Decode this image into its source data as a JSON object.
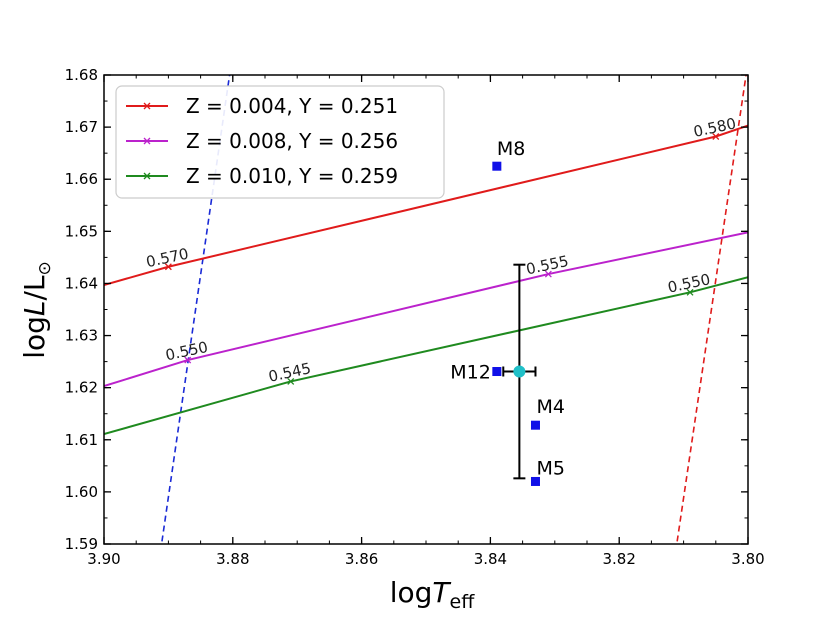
{
  "chart_data": {
    "type": "line",
    "xlabel": "log",
    "xlabel_sym": "T",
    "xlabel_sub": "eff",
    "ylabel": "log",
    "ylabel_sym": "L",
    "ylabel_sfx": "/L",
    "ylabel_sub": "⊙",
    "xlim": [
      3.9,
      3.8
    ],
    "ylim": [
      1.59,
      1.68
    ],
    "xticks": [
      "3.90",
      "3.88",
      "3.86",
      "3.84",
      "3.82",
      "3.80"
    ],
    "yticks": [
      "1.59",
      "1.60",
      "1.61",
      "1.62",
      "1.63",
      "1.64",
      "1.65",
      "1.66",
      "1.67",
      "1.68"
    ],
    "legend_position": "top-left",
    "series": [
      {
        "name": "Z = 0.004, Y = 0.251",
        "color": "#e01b1b",
        "x": [
          3.9,
          3.89,
          3.805,
          3.8
        ],
        "y": [
          1.6397,
          1.6432,
          1.6682,
          1.6703
        ],
        "markers": [
          {
            "x": 3.89,
            "y": 1.6432,
            "label": "0.570"
          },
          {
            "x": 3.805,
            "y": 1.6682,
            "label": "0.580"
          }
        ]
      },
      {
        "name": "Z = 0.008, Y = 0.256",
        "color": "#bb22cc",
        "x": [
          3.9,
          3.887,
          3.831,
          3.8
        ],
        "y": [
          1.6203,
          1.6253,
          1.6418,
          1.6498
        ],
        "markers": [
          {
            "x": 3.887,
            "y": 1.6253,
            "label": "0.550"
          },
          {
            "x": 3.831,
            "y": 1.6418,
            "label": "0.555"
          }
        ]
      },
      {
        "name": "Z = 0.010, Y = 0.259",
        "color": "#1f8a1f",
        "x": [
          3.9,
          3.871,
          3.809,
          3.8
        ],
        "y": [
          1.6111,
          1.6212,
          1.6383,
          1.6412
        ],
        "markers": [
          {
            "x": 3.871,
            "y": 1.6212,
            "label": "0.545"
          },
          {
            "x": 3.809,
            "y": 1.6383,
            "label": "0.550"
          }
        ]
      }
    ],
    "dashed_lines": [
      {
        "color": "#1a2ad6",
        "x": [
          3.891,
          3.8805
        ],
        "y": [
          1.5905,
          1.68
        ]
      },
      {
        "color": "#e01b1b",
        "x": [
          3.811,
          3.8003
        ],
        "y": [
          1.5905,
          1.68
        ]
      }
    ],
    "stars": [
      {
        "label": "M8",
        "x": 3.839,
        "y": 1.6625
      },
      {
        "label": "M12",
        "x": 3.839,
        "y": 1.6231
      },
      {
        "label": "M4",
        "x": 3.833,
        "y": 1.6128
      },
      {
        "label": "M5",
        "x": 3.833,
        "y": 1.602
      }
    ],
    "mean_point": {
      "x": 3.8355,
      "y": 1.6231,
      "xerr": 0.0025,
      "yerr": 0.0205,
      "color": "#20c0c8"
    },
    "marker_color": "#1010e8"
  }
}
